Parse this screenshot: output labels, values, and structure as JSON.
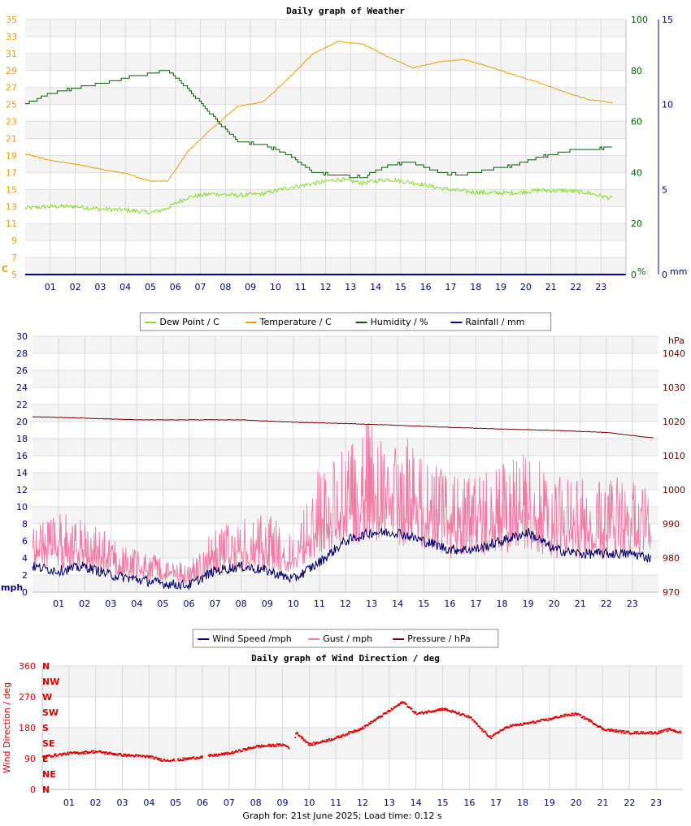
{
  "footer": {
    "text": "Graph for: 21st June 2025; Load time: 0.12 s"
  },
  "colors": {
    "temperature": "#e8a100",
    "dew_point": "#80e020",
    "humidity": "#006000",
    "rainfall": "#000090",
    "wind": "#000070",
    "gust": "#f07aa0",
    "pressure": "#700000",
    "direction": "#e00000"
  },
  "chart_data": [
    {
      "type": "line",
      "title": "Daily graph of Weather",
      "x_ticks": [
        "01",
        "02",
        "03",
        "04",
        "05",
        "06",
        "07",
        "08",
        "09",
        "10",
        "11",
        "12",
        "13",
        "14",
        "15",
        "16",
        "17",
        "18",
        "19",
        "20",
        "21",
        "22",
        "23"
      ],
      "axes": {
        "temperature": {
          "unit": "C",
          "range": [
            5,
            35
          ],
          "ticks": [
            "5",
            "7",
            "9",
            "11",
            "13",
            "15",
            "17",
            "19",
            "21",
            "23",
            "25",
            "27",
            "29",
            "31",
            "33",
            "35"
          ]
        },
        "humidity": {
          "unit": "%",
          "range": [
            0,
            100
          ],
          "ticks": [
            "0",
            "20",
            "40",
            "60",
            "80",
            "100"
          ]
        },
        "rainfall": {
          "unit": "mm",
          "range": [
            0,
            15
          ],
          "ticks": [
            "0",
            "5",
            "10",
            "15"
          ]
        }
      },
      "legend": [
        "Dew Point / C",
        "Temperature / C",
        "Humidity / %",
        "Rainfall / mm"
      ],
      "legend_position": "bottom",
      "series": [
        {
          "name": "Temperature / C",
          "axis": "temperature",
          "x": [
            0,
            1,
            2,
            3,
            4,
            5,
            5.7,
            6.5,
            7.5,
            8.5,
            9.5,
            10.5,
            11.5,
            12.5,
            13.5,
            14.5,
            15.5,
            16.5,
            17.5,
            18.5,
            19.5,
            20.5,
            21.5,
            22.5,
            23.5
          ],
          "y": [
            19.2,
            18.4,
            18,
            17.4,
            16.9,
            16,
            16,
            19.5,
            22.3,
            24.8,
            25.3,
            28,
            31,
            32.4,
            32.1,
            30.6,
            29.3,
            30,
            30.3,
            29.5,
            28.5,
            27.6,
            26.5,
            25.6,
            25.2
          ]
        },
        {
          "name": "Dew Point / C",
          "axis": "temperature",
          "x": [
            0,
            1,
            2,
            3,
            4,
            5,
            5.5,
            6.5,
            7.5,
            8.5,
            9.5,
            10.5,
            11.5,
            12.5,
            13.5,
            14.5,
            15.5,
            16.5,
            17.5,
            18.5,
            19.5,
            20.5,
            21.5,
            22.5,
            23.5
          ],
          "y": [
            12.8,
            13,
            13,
            12.7,
            12.6,
            12.3,
            12.6,
            14.1,
            14.5,
            14.3,
            14.5,
            15.2,
            15.7,
            16.2,
            15.8,
            16.2,
            15.8,
            15.2,
            14.8,
            14.6,
            14.6,
            14.9,
            14.9,
            14.6,
            13.9
          ]
        },
        {
          "name": "Humidity / %",
          "axis": "humidity",
          "x": [
            0,
            1,
            2,
            3,
            4,
            5,
            5.7,
            6.5,
            7.5,
            8.5,
            9.5,
            10.5,
            11.5,
            12.5,
            13.5,
            14.5,
            15.5,
            16.5,
            17.5,
            18.5,
            19.5,
            20.5,
            21.5,
            22.5,
            23.5
          ],
          "y": [
            67,
            71,
            73,
            75,
            77,
            79,
            80,
            73,
            62,
            52,
            51,
            47,
            40,
            39,
            38,
            43,
            44,
            40,
            39,
            41,
            43,
            46,
            48,
            49,
            50
          ]
        },
        {
          "name": "Rainfall / mm",
          "axis": "rainfall",
          "x": [
            0,
            23.5
          ],
          "y": [
            0,
            0
          ]
        }
      ]
    },
    {
      "type": "line",
      "title": "",
      "x_ticks": [
        "01",
        "02",
        "03",
        "04",
        "05",
        "06",
        "07",
        "08",
        "09",
        "10",
        "11",
        "12",
        "13",
        "14",
        "15",
        "16",
        "17",
        "18",
        "19",
        "20",
        "21",
        "22",
        "23"
      ],
      "axes": {
        "speed": {
          "unit": "mph",
          "range": [
            0,
            30
          ],
          "ticks": [
            "0",
            "2",
            "4",
            "6",
            "8",
            "10",
            "12",
            "14",
            "16",
            "18",
            "20",
            "22",
            "24",
            "26",
            "28",
            "30"
          ]
        },
        "pressure": {
          "unit": "hPa",
          "range": [
            970,
            1045
          ],
          "ticks": [
            "970",
            "980",
            "990",
            "1000",
            "1010",
            "1020",
            "1030",
            "1040"
          ]
        }
      },
      "legend": [
        "Wind Speed /mph",
        "Gust / mph",
        "Pressure / hPa"
      ],
      "legend_position": "bottom",
      "series": [
        {
          "name": "Wind Speed /mph",
          "axis": "speed",
          "x": [
            0,
            1,
            2,
            3,
            4,
            5,
            6,
            7,
            8,
            9,
            10,
            11,
            12,
            13,
            14,
            15,
            16,
            17,
            18,
            19,
            20,
            21,
            22,
            23,
            23.7
          ],
          "y": [
            3,
            2.5,
            3,
            2,
            1.5,
            1,
            0.8,
            2.5,
            3,
            2.5,
            1.5,
            3.5,
            6,
            7,
            7,
            6,
            5,
            5,
            6,
            7,
            5,
            4.5,
            4.5,
            4.5,
            4
          ]
        },
        {
          "name": "Gust / mph",
          "axis": "speed",
          "x": [
            0,
            1,
            2,
            3,
            4,
            5,
            6,
            7,
            8,
            9,
            10,
            11,
            12,
            13,
            14,
            15,
            16,
            17,
            18,
            19,
            20,
            21,
            22,
            23,
            23.7
          ],
          "y": [
            5,
            5.5,
            5,
            4,
            3,
            2.5,
            2,
            4.5,
            5,
            5.5,
            4,
            9,
            10,
            12,
            11,
            10,
            8,
            8,
            9,
            10,
            8,
            8,
            8,
            8,
            7
          ]
        },
        {
          "name": "Pressure / hPa",
          "axis": "pressure",
          "x": [
            0,
            2,
            4,
            6,
            8,
            10,
            12,
            14,
            16,
            18,
            20,
            22,
            23.8
          ],
          "y": [
            1021.4,
            1021,
            1020.5,
            1020.5,
            1020.5,
            1019.8,
            1019.4,
            1018.9,
            1018.3,
            1017.8,
            1017.4,
            1016.8,
            1015.2
          ]
        }
      ]
    },
    {
      "type": "scatter",
      "title": "Daily graph of Wind Direction / deg",
      "ylabel": "Wind Direction / deg",
      "x_ticks": [
        "01",
        "02",
        "03",
        "04",
        "05",
        "06",
        "07",
        "08",
        "09",
        "10",
        "11",
        "12",
        "13",
        "14",
        "15",
        "16",
        "17",
        "18",
        "19",
        "20",
        "21",
        "22",
        "23"
      ],
      "y_ticks": [
        "0",
        "90",
        "180",
        "270",
        "360"
      ],
      "compass_labels": [
        "N",
        "NE",
        "E",
        "SE",
        "S",
        "SW",
        "W",
        "NW",
        "N"
      ],
      "ylim": [
        0,
        360
      ],
      "series": [
        {
          "name": "",
          "x": [
            0,
            1,
            2,
            3,
            4,
            4.5,
            5,
            5.5,
            6,
            7,
            7.5,
            8,
            9,
            9.3,
            9.5,
            10,
            11,
            12,
            13,
            13.5,
            14,
            15,
            16,
            16.5,
            16.8,
            17,
            17.5,
            18,
            19,
            19.5,
            20,
            20.5,
            21,
            22,
            23,
            23.5,
            23.9
          ],
          "y": [
            95,
            105,
            110,
            100,
            95,
            85,
            85,
            90,
            95,
            105,
            115,
            125,
            130,
            120,
            165,
            130,
            150,
            180,
            230,
            255,
            220,
            235,
            210,
            170,
            150,
            165,
            185,
            190,
            205,
            215,
            220,
            200,
            175,
            165,
            165,
            175,
            165
          ]
        }
      ]
    }
  ]
}
